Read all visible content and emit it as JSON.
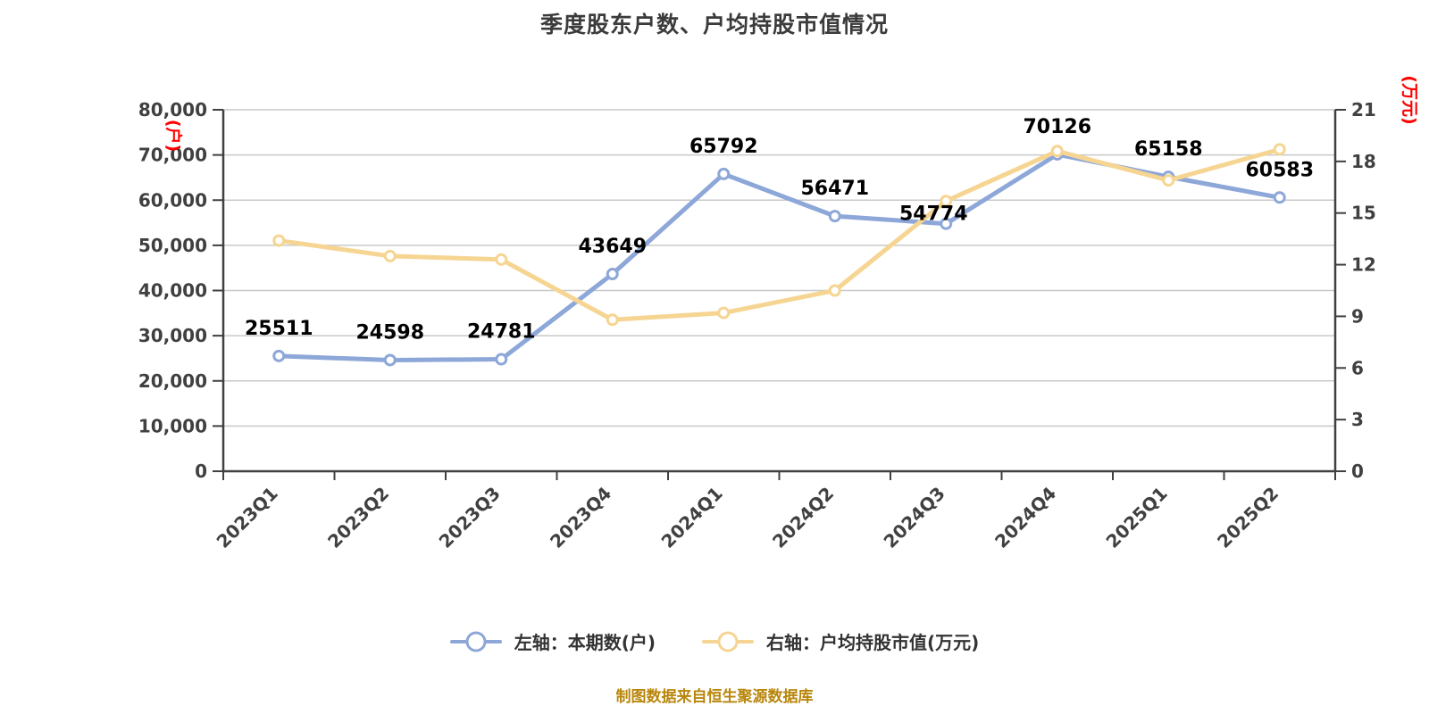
{
  "title": "季度股东户数、户均持股市值情况",
  "source_caption": "制图数据来自恒生聚源数据库",
  "colors": {
    "series_left": "#8DA7D8",
    "series_right": "#F6D592",
    "grid": "#C9C9C9",
    "axis": "#404040",
    "tick_label": "#404040",
    "data_label": "#000000",
    "axis_unit": "#FF0000",
    "title": "#3B3B3B",
    "caption": "#B8860B",
    "legend_text": "#333333",
    "marker_fill": "#FFFFFF"
  },
  "legend": {
    "items": [
      {
        "label": "左轴：本期数(户)",
        "color": "#8DA7D8"
      },
      {
        "label": "右轴：户均持股市值(万元)",
        "color": "#F6D592"
      }
    ]
  },
  "chart_data": {
    "type": "line",
    "title": "季度股东户数、户均持股市值情况",
    "categories": [
      "2023Q1",
      "2023Q2",
      "2023Q3",
      "2023Q4",
      "2024Q1",
      "2024Q2",
      "2024Q3",
      "2024Q4",
      "2025Q1",
      "2025Q2"
    ],
    "series": [
      {
        "name": "左轴：本期数(户)",
        "axis": "left",
        "color": "#8DA7D8",
        "marker": "circle",
        "show_labels": true,
        "values": [
          25511,
          24598,
          24781,
          43649,
          65792,
          56471,
          54774,
          70126,
          65158,
          60583
        ]
      },
      {
        "name": "右轴：户均持股市值(万元)",
        "axis": "right",
        "color": "#F6D592",
        "marker": "circle",
        "show_labels": false,
        "values": [
          13.4,
          12.5,
          12.3,
          8.8,
          9.2,
          10.5,
          15.7,
          18.6,
          16.9,
          18.7
        ]
      }
    ],
    "left_axis": {
      "min": 0,
      "max": 80000,
      "step": 10000,
      "tick_labels": [
        "0",
        "10,000",
        "20,000",
        "30,000",
        "40,000",
        "50,000",
        "60,000",
        "70,000",
        "80,000"
      ],
      "unit_label": "(户)"
    },
    "right_axis": {
      "min": 0,
      "max": 21,
      "step": 3,
      "tick_labels": [
        "0",
        "3",
        "6",
        "9",
        "12",
        "15",
        "18",
        "21"
      ],
      "unit_label": "(万元)"
    },
    "grid": true,
    "legend_position": "bottom",
    "x_label_rotation": -45
  }
}
